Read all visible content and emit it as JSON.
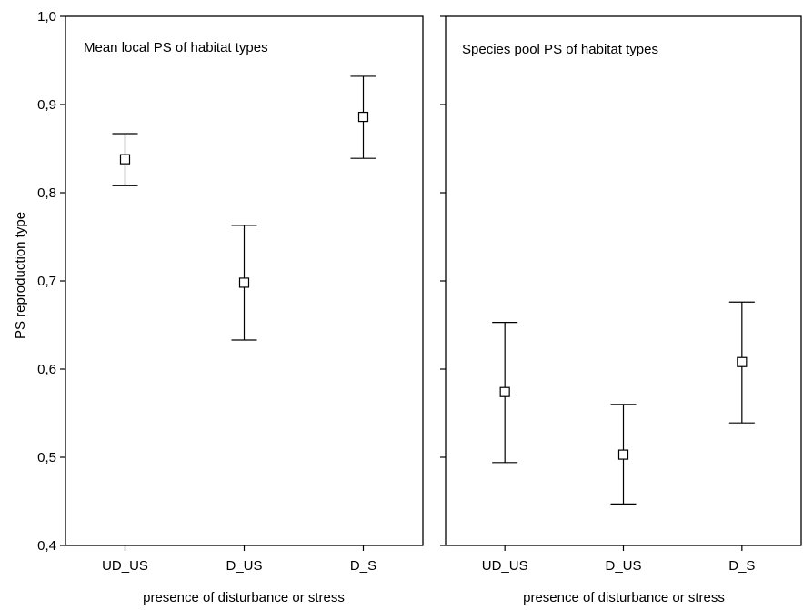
{
  "chart_data": [
    {
      "type": "errorbar",
      "title": "Mean local PS of habitat types",
      "xlabel": "presence of disturbance or stress",
      "ylabel": "PS reproduction type",
      "categories": [
        "UD_US",
        "D_US",
        "D_S"
      ],
      "values": [
        0.838,
        0.698,
        0.886
      ],
      "lower": [
        0.808,
        0.633,
        0.839
      ],
      "upper": [
        0.867,
        0.763,
        0.932
      ],
      "ylim": [
        0.4,
        1.0
      ],
      "yticks": [
        "0,4",
        "0,5",
        "0,6",
        "0,7",
        "0,8",
        "0,9",
        "1,0"
      ],
      "grid": false
    },
    {
      "type": "errorbar",
      "title": "Species pool PS of habitat types",
      "xlabel": "presence of disturbance or stress",
      "ylabel": "",
      "categories": [
        "UD_US",
        "D_US",
        "D_S"
      ],
      "values": [
        0.574,
        0.503,
        0.608
      ],
      "lower": [
        0.494,
        0.447,
        0.539
      ],
      "upper": [
        0.653,
        0.56,
        0.676
      ],
      "ylim": [
        0.4,
        1.0
      ],
      "grid": false
    }
  ]
}
